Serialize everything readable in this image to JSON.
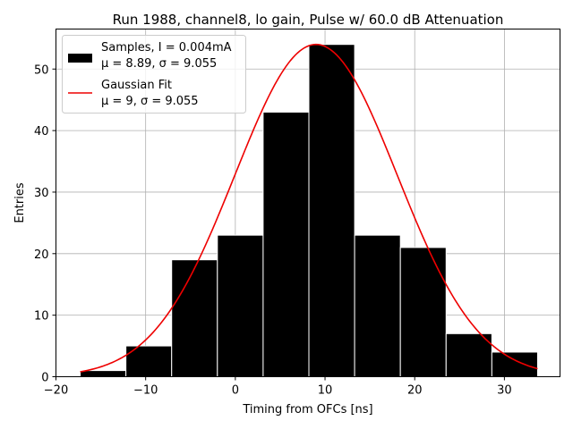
{
  "chart_data": {
    "type": "bar",
    "title": "Run 1988, channel8, lo gain, Pulse w/ 60.0 dB Attenuation",
    "xlabel": "Timing from OFCs [ns]",
    "ylabel": "Entries",
    "xlim": [
      -20,
      36.2
    ],
    "ylim": [
      0,
      56.5
    ],
    "xticks": [
      -20,
      -10,
      0,
      10,
      20,
      30
    ],
    "xtick_labels": [
      "−20",
      "−10",
      "0",
      "10",
      "20",
      "30"
    ],
    "yticks": [
      0,
      10,
      20,
      30,
      40,
      50
    ],
    "ytick_labels": [
      "0",
      "10",
      "20",
      "30",
      "40",
      "50"
    ],
    "grid": true,
    "legend_position": "top-left",
    "histogram": {
      "name_line1": "Samples, I = 0.004mA",
      "name_line2": "μ = 8.89, σ = 9.055",
      "color": "#000000",
      "bins": [
        {
          "start": -17.3,
          "end": -12.2,
          "count": 1
        },
        {
          "start": -12.2,
          "end": -7.1,
          "count": 5
        },
        {
          "start": -7.1,
          "end": -2.0,
          "count": 19
        },
        {
          "start": -2.0,
          "end": 3.1,
          "count": 23
        },
        {
          "start": 3.1,
          "end": 8.2,
          "count": 43
        },
        {
          "start": 8.2,
          "end": 13.3,
          "count": 54
        },
        {
          "start": 13.3,
          "end": 18.4,
          "count": 23
        },
        {
          "start": 18.4,
          "end": 23.5,
          "count": 21
        },
        {
          "start": 23.5,
          "end": 28.6,
          "count": 7
        },
        {
          "start": 28.6,
          "end": 33.7,
          "count": 4
        }
      ]
    },
    "fit": {
      "name_line1": "Gaussian Fit",
      "name_line2": "μ = 9, σ = 9.055",
      "color": "#ee0000",
      "mu": 9.0,
      "sigma": 9.055,
      "amplitude": 54,
      "x_range": [
        -17.3,
        33.7
      ]
    }
  }
}
